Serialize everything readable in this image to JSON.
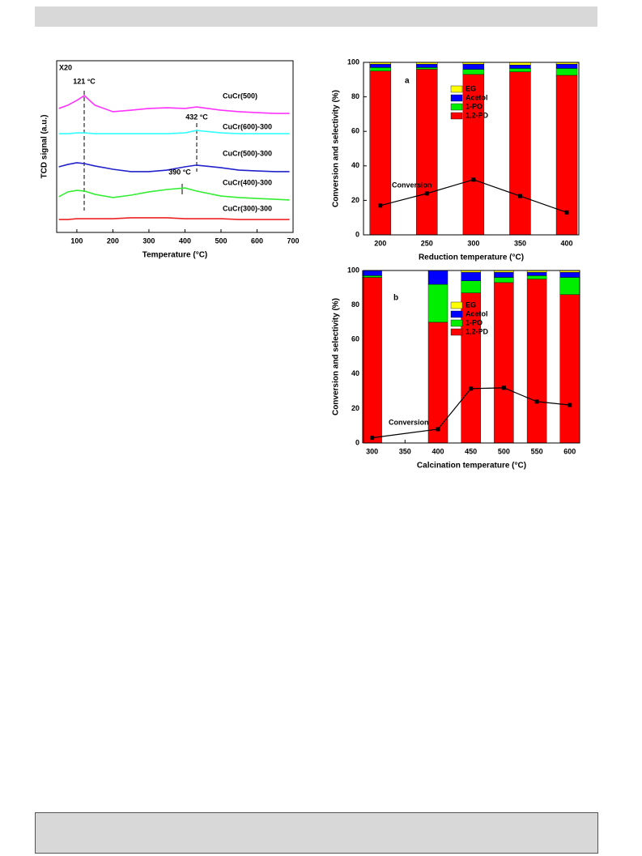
{
  "chart_data": [
    {
      "type": "line",
      "x_label": "Temperature (°C)",
      "y_label": "TCD signal (a.u.)",
      "annotations": [
        "X20",
        "121 °C",
        "432 °C",
        "390 °C"
      ],
      "x": [
        50,
        75,
        100,
        121,
        150,
        200,
        250,
        300,
        350,
        400,
        432,
        500,
        550,
        600,
        650,
        690
      ],
      "series": [
        {
          "name": "CuCr(500)",
          "color": "#ff33ff",
          "values": [
            7.22,
            7.41,
            7.69,
            7.97,
            7.41,
            7.03,
            7.12,
            7.22,
            7.26,
            7.22,
            7.31,
            7.12,
            7.03,
            6.98,
            6.93,
            6.93
          ]
        },
        {
          "name": "CuCr(600)-300",
          "color": "#33ffff",
          "values": [
            5.75,
            5.75,
            5.8,
            5.8,
            5.75,
            5.75,
            5.75,
            5.75,
            5.75,
            5.8,
            5.94,
            5.8,
            5.75,
            5.75,
            5.75,
            5.75
          ]
        },
        {
          "name": "CuCr(500)-300",
          "color": "#2222cc",
          "values": [
            3.82,
            3.96,
            4.06,
            4.01,
            3.87,
            3.68,
            3.54,
            3.54,
            3.63,
            3.82,
            3.92,
            3.77,
            3.63,
            3.58,
            3.54,
            3.54
          ]
        },
        {
          "name": "CuCr(400)-300",
          "color": "#33ee33",
          "values": [
            2.08,
            2.36,
            2.45,
            2.41,
            2.22,
            2.03,
            2.17,
            2.36,
            2.5,
            2.59,
            2.41,
            2.12,
            2.03,
            1.98,
            1.93,
            1.89
          ]
        },
        {
          "name": "CuCr(300)-300",
          "color": "#ee2222",
          "values": [
            0.75,
            0.75,
            0.8,
            0.8,
            0.8,
            0.8,
            0.85,
            0.85,
            0.85,
            0.8,
            0.8,
            0.8,
            0.75,
            0.75,
            0.75,
            0.75
          ]
        }
      ],
      "xlim": [
        44,
        700
      ],
      "xticks": [
        100,
        200,
        300,
        400,
        500,
        600,
        700
      ],
      "ylim": [
        0,
        10
      ]
    },
    {
      "type": "bar",
      "stacked": true,
      "panel": "a",
      "x_label": "Reduction temperature (°C)",
      "y_label": "Conversion and selectivity (%)",
      "x": [
        200,
        250,
        300,
        350,
        400
      ],
      "series": [
        {
          "name": "1,2-PD",
          "color": "#ff0000",
          "values": [
            95,
            96,
            93,
            94.5,
            92.5
          ]
        },
        {
          "name": "1-PO",
          "color": "#00ee00",
          "values": [
            2,
            1,
            3,
            2,
            4
          ]
        },
        {
          "name": "Acetol",
          "color": "#0000ff",
          "values": [
            2,
            2,
            3,
            2,
            2.5
          ]
        },
        {
          "name": "EG",
          "color": "#ffff00",
          "values": [
            1,
            1,
            1,
            1.5,
            1
          ]
        }
      ],
      "line": {
        "name": "Conversion",
        "color": "#000000",
        "values": [
          17,
          24,
          32,
          22.5,
          13
        ]
      },
      "xlim": [
        182,
        413
      ],
      "xticks": [
        200,
        250,
        300,
        350,
        400
      ],
      "ylim": [
        0,
        100
      ],
      "yticks": [
        0,
        20,
        40,
        60,
        80,
        100
      ]
    },
    {
      "type": "bar",
      "stacked": true,
      "panel": "b",
      "x_label": "Calcination temperature (°C)",
      "y_label": "Conversion and selectivity (%)",
      "x": [
        300,
        400,
        450,
        500,
        550,
        600
      ],
      "series": [
        {
          "name": "1,2-PD",
          "color": "#ff0000",
          "values": [
            96,
            70,
            87,
            93,
            95,
            86
          ]
        },
        {
          "name": "1-PO",
          "color": "#00ee00",
          "values": [
            1,
            22,
            7,
            3,
            2,
            10
          ]
        },
        {
          "name": "Acetol",
          "color": "#0000ff",
          "values": [
            3,
            8,
            5,
            3,
            2,
            3
          ]
        },
        {
          "name": "EG",
          "color": "#ffff00",
          "values": [
            0,
            0,
            1,
            1,
            1,
            1
          ]
        }
      ],
      "line": {
        "name": "Conversion",
        "color": "#000000",
        "values": [
          3,
          8,
          31.5,
          32,
          24,
          22
        ]
      },
      "xlim": [
        287,
        615
      ],
      "xticks": [
        300,
        350,
        400,
        450,
        500,
        550,
        600
      ],
      "ylim": [
        0,
        100
      ],
      "yticks": [
        0,
        20,
        40,
        60,
        80,
        100
      ]
    }
  ]
}
